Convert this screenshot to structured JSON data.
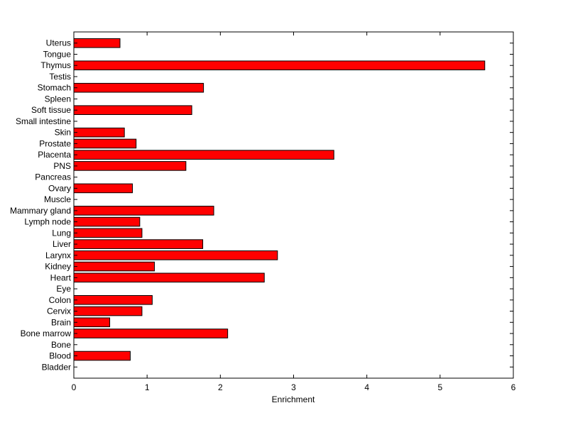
{
  "chart_data": {
    "type": "bar",
    "orientation": "horizontal",
    "xlabel": "Enrichment",
    "ylabel": "",
    "title": "",
    "xlim": [
      0,
      6
    ],
    "xticks": [
      "0",
      "1",
      "2",
      "3",
      "4",
      "5",
      "6"
    ],
    "categories": [
      "Uterus",
      "Tongue",
      "Thymus",
      "Testis",
      "Stomach",
      "Spleen",
      "Soft tissue",
      "Small intestine",
      "Skin",
      "Prostate",
      "Placenta",
      "PNS",
      "Pancreas",
      "Ovary",
      "Muscle",
      "Mammary gland",
      "Lymph node",
      "Lung",
      "Liver",
      "Larynx",
      "Kidney",
      "Heart",
      "Eye",
      "Colon",
      "Cervix",
      "Brain",
      "Bone marrow",
      "Bone",
      "Blood",
      "Bladder"
    ],
    "values": [
      0.63,
      0,
      5.61,
      0,
      1.77,
      0,
      1.61,
      0,
      0.69,
      0.85,
      3.55,
      1.53,
      0,
      0.8,
      0,
      1.91,
      0.9,
      0.93,
      1.76,
      2.78,
      1.1,
      2.6,
      0,
      1.07,
      0.93,
      0.49,
      2.1,
      0,
      0.77,
      0
    ],
    "bar_color": "#ff0000",
    "edge_color": "#000000",
    "grid": false,
    "legend": "none"
  }
}
